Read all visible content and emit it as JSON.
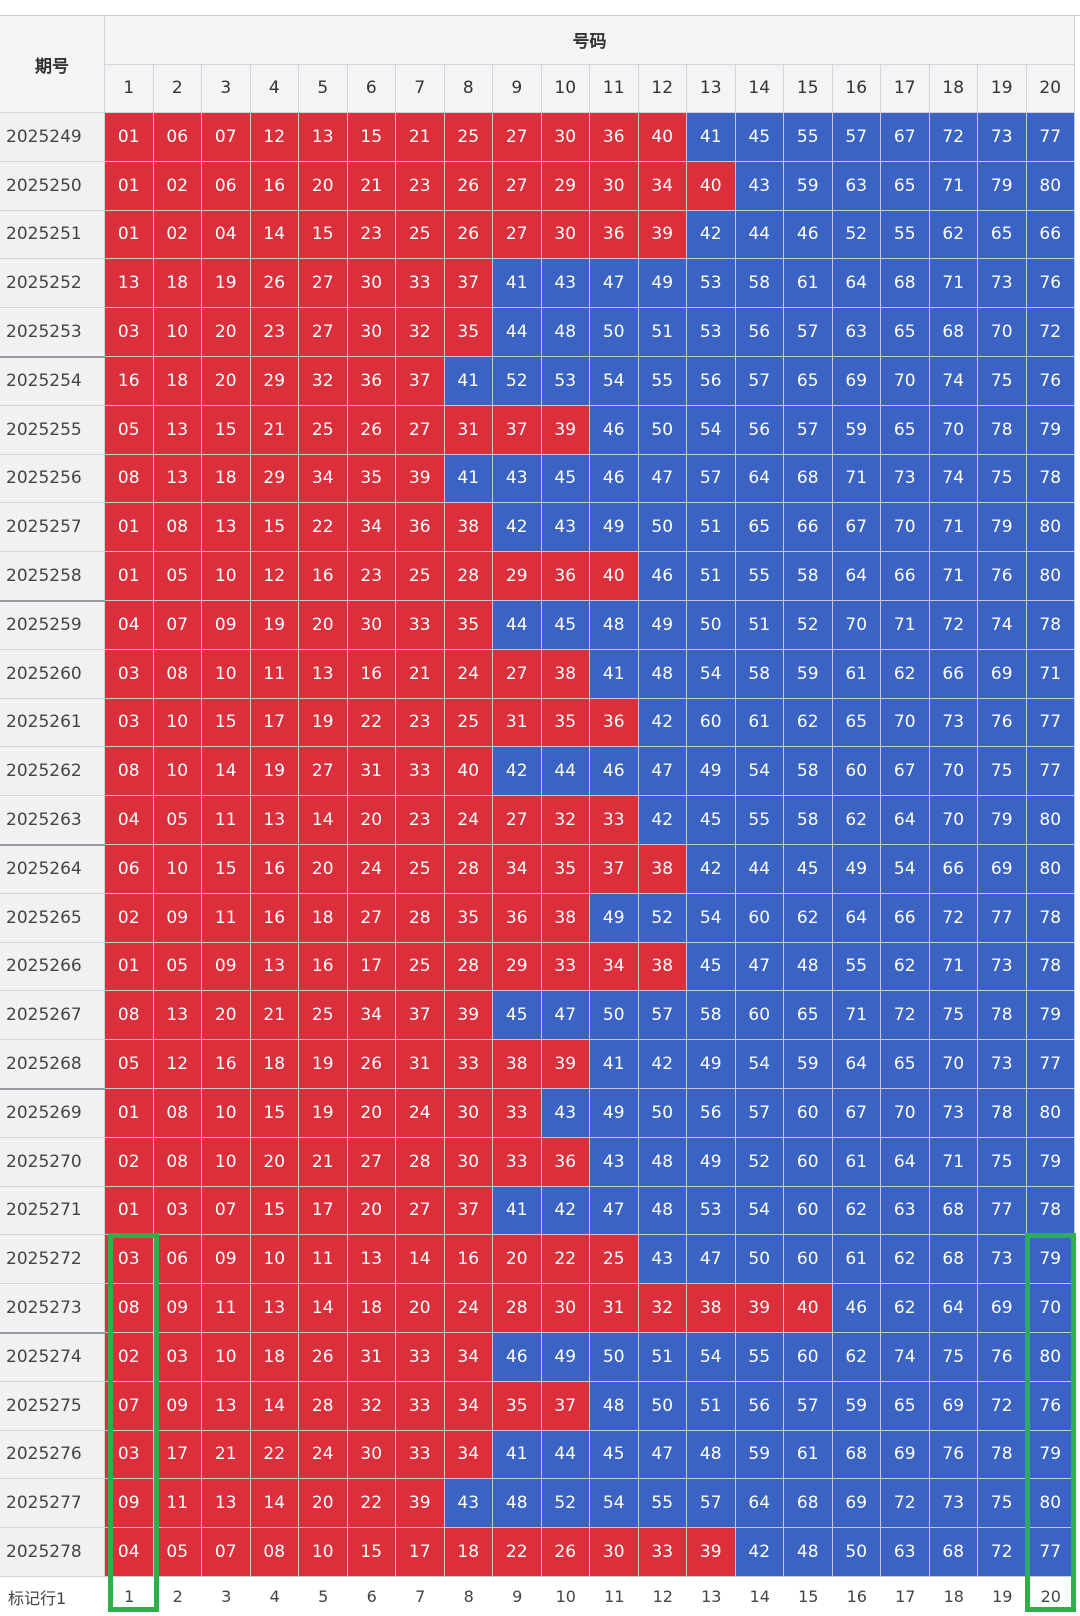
{
  "header": {
    "period_label": "期号",
    "numbers_label": "号码",
    "columns": [
      "1",
      "2",
      "3",
      "4",
      "5",
      "6",
      "7",
      "8",
      "9",
      "10",
      "11",
      "12",
      "13",
      "14",
      "15",
      "16",
      "17",
      "18",
      "19",
      "20"
    ]
  },
  "colors": {
    "low": "#dc2f3c",
    "high": "#3b63c3"
  },
  "rows": [
    {
      "period": "2025249",
      "red_cells": 12,
      "numbers": [
        "01",
        "06",
        "07",
        "12",
        "13",
        "15",
        "21",
        "25",
        "27",
        "30",
        "36",
        "40",
        "41",
        "45",
        "55",
        "57",
        "67",
        "72",
        "73",
        "77"
      ]
    },
    {
      "period": "2025250",
      "red_cells": 13,
      "numbers": [
        "01",
        "02",
        "06",
        "16",
        "20",
        "21",
        "23",
        "26",
        "27",
        "29",
        "30",
        "34",
        "40",
        "43",
        "59",
        "63",
        "65",
        "71",
        "79",
        "80"
      ]
    },
    {
      "period": "2025251",
      "red_cells": 12,
      "numbers": [
        "01",
        "02",
        "04",
        "14",
        "15",
        "23",
        "25",
        "26",
        "27",
        "30",
        "36",
        "39",
        "42",
        "44",
        "46",
        "52",
        "55",
        "62",
        "65",
        "66"
      ]
    },
    {
      "period": "2025252",
      "red_cells": 8,
      "numbers": [
        "13",
        "18",
        "19",
        "26",
        "27",
        "30",
        "33",
        "37",
        "41",
        "43",
        "47",
        "49",
        "53",
        "58",
        "61",
        "64",
        "68",
        "71",
        "73",
        "76"
      ]
    },
    {
      "period": "2025253",
      "red_cells": 8,
      "numbers": [
        "03",
        "10",
        "20",
        "23",
        "27",
        "30",
        "32",
        "35",
        "44",
        "48",
        "50",
        "51",
        "53",
        "56",
        "57",
        "63",
        "65",
        "68",
        "70",
        "72"
      ]
    },
    {
      "period": "2025254",
      "red_cells": 7,
      "numbers": [
        "16",
        "18",
        "20",
        "29",
        "32",
        "36",
        "37",
        "41",
        "52",
        "53",
        "54",
        "55",
        "56",
        "57",
        "65",
        "69",
        "70",
        "74",
        "75",
        "76"
      ]
    },
    {
      "period": "2025255",
      "red_cells": 10,
      "numbers": [
        "05",
        "13",
        "15",
        "21",
        "25",
        "26",
        "27",
        "31",
        "37",
        "39",
        "46",
        "50",
        "54",
        "56",
        "57",
        "59",
        "65",
        "70",
        "78",
        "79"
      ]
    },
    {
      "period": "2025256",
      "red_cells": 7,
      "numbers": [
        "08",
        "13",
        "18",
        "29",
        "34",
        "35",
        "39",
        "41",
        "43",
        "45",
        "46",
        "47",
        "57",
        "64",
        "68",
        "71",
        "73",
        "74",
        "75",
        "78"
      ]
    },
    {
      "period": "2025257",
      "red_cells": 8,
      "numbers": [
        "01",
        "08",
        "13",
        "15",
        "22",
        "34",
        "36",
        "38",
        "42",
        "43",
        "49",
        "50",
        "51",
        "65",
        "66",
        "67",
        "70",
        "71",
        "79",
        "80"
      ]
    },
    {
      "period": "2025258",
      "red_cells": 11,
      "numbers": [
        "01",
        "05",
        "10",
        "12",
        "16",
        "23",
        "25",
        "28",
        "29",
        "36",
        "40",
        "46",
        "51",
        "55",
        "58",
        "64",
        "66",
        "71",
        "76",
        "80"
      ]
    },
    {
      "period": "2025259",
      "red_cells": 8,
      "numbers": [
        "04",
        "07",
        "09",
        "19",
        "20",
        "30",
        "33",
        "35",
        "44",
        "45",
        "48",
        "49",
        "50",
        "51",
        "52",
        "70",
        "71",
        "72",
        "74",
        "78"
      ]
    },
    {
      "period": "2025260",
      "red_cells": 10,
      "numbers": [
        "03",
        "08",
        "10",
        "11",
        "13",
        "16",
        "21",
        "24",
        "27",
        "38",
        "41",
        "48",
        "54",
        "58",
        "59",
        "61",
        "62",
        "66",
        "69",
        "71"
      ]
    },
    {
      "period": "2025261",
      "red_cells": 11,
      "numbers": [
        "03",
        "10",
        "15",
        "17",
        "19",
        "22",
        "23",
        "25",
        "31",
        "35",
        "36",
        "42",
        "60",
        "61",
        "62",
        "65",
        "70",
        "73",
        "76",
        "77"
      ]
    },
    {
      "period": "2025262",
      "red_cells": 8,
      "numbers": [
        "08",
        "10",
        "14",
        "19",
        "27",
        "31",
        "33",
        "40",
        "42",
        "44",
        "46",
        "47",
        "49",
        "54",
        "58",
        "60",
        "67",
        "70",
        "75",
        "77"
      ]
    },
    {
      "period": "2025263",
      "red_cells": 11,
      "numbers": [
        "04",
        "05",
        "11",
        "13",
        "14",
        "20",
        "23",
        "24",
        "27",
        "32",
        "33",
        "42",
        "45",
        "55",
        "58",
        "62",
        "64",
        "70",
        "79",
        "80"
      ]
    },
    {
      "period": "2025264",
      "red_cells": 12,
      "numbers": [
        "06",
        "10",
        "15",
        "16",
        "20",
        "24",
        "25",
        "28",
        "34",
        "35",
        "37",
        "38",
        "42",
        "44",
        "45",
        "49",
        "54",
        "66",
        "69",
        "80"
      ]
    },
    {
      "period": "2025265",
      "red_cells": 10,
      "numbers": [
        "02",
        "09",
        "11",
        "16",
        "18",
        "27",
        "28",
        "35",
        "36",
        "38",
        "49",
        "52",
        "54",
        "60",
        "62",
        "64",
        "66",
        "72",
        "77",
        "78"
      ]
    },
    {
      "period": "2025266",
      "red_cells": 12,
      "numbers": [
        "01",
        "05",
        "09",
        "13",
        "16",
        "17",
        "25",
        "28",
        "29",
        "33",
        "34",
        "38",
        "45",
        "47",
        "48",
        "55",
        "62",
        "71",
        "73",
        "78"
      ]
    },
    {
      "period": "2025267",
      "red_cells": 8,
      "numbers": [
        "08",
        "13",
        "20",
        "21",
        "25",
        "34",
        "37",
        "39",
        "45",
        "47",
        "50",
        "57",
        "58",
        "60",
        "65",
        "71",
        "72",
        "75",
        "78",
        "79"
      ]
    },
    {
      "period": "2025268",
      "red_cells": 10,
      "numbers": [
        "05",
        "12",
        "16",
        "18",
        "19",
        "26",
        "31",
        "33",
        "38",
        "39",
        "41",
        "42",
        "49",
        "54",
        "59",
        "64",
        "65",
        "70",
        "73",
        "77"
      ]
    },
    {
      "period": "2025269",
      "red_cells": 9,
      "numbers": [
        "01",
        "08",
        "10",
        "15",
        "19",
        "20",
        "24",
        "30",
        "33",
        "43",
        "49",
        "50",
        "56",
        "57",
        "60",
        "67",
        "70",
        "73",
        "78",
        "80"
      ]
    },
    {
      "period": "2025270",
      "red_cells": 10,
      "numbers": [
        "02",
        "08",
        "10",
        "20",
        "21",
        "27",
        "28",
        "30",
        "33",
        "36",
        "43",
        "48",
        "49",
        "52",
        "60",
        "61",
        "64",
        "71",
        "75",
        "79"
      ]
    },
    {
      "period": "2025271",
      "red_cells": 8,
      "numbers": [
        "01",
        "03",
        "07",
        "15",
        "17",
        "20",
        "27",
        "37",
        "41",
        "42",
        "47",
        "48",
        "53",
        "54",
        "60",
        "62",
        "63",
        "68",
        "77",
        "78"
      ]
    },
    {
      "period": "2025272",
      "red_cells": 11,
      "numbers": [
        "03",
        "06",
        "09",
        "10",
        "11",
        "13",
        "14",
        "16",
        "20",
        "22",
        "25",
        "43",
        "47",
        "50",
        "60",
        "61",
        "62",
        "68",
        "73",
        "79"
      ]
    },
    {
      "period": "2025273",
      "red_cells": 15,
      "numbers": [
        "08",
        "09",
        "11",
        "13",
        "14",
        "18",
        "20",
        "24",
        "28",
        "30",
        "31",
        "32",
        "38",
        "39",
        "40",
        "46",
        "62",
        "64",
        "69",
        "70"
      ]
    },
    {
      "period": "2025274",
      "red_cells": 8,
      "numbers": [
        "02",
        "03",
        "10",
        "18",
        "26",
        "31",
        "33",
        "34",
        "46",
        "49",
        "50",
        "51",
        "54",
        "55",
        "60",
        "62",
        "74",
        "75",
        "76",
        "80"
      ]
    },
    {
      "period": "2025275",
      "red_cells": 10,
      "numbers": [
        "07",
        "09",
        "13",
        "14",
        "28",
        "32",
        "33",
        "34",
        "35",
        "37",
        "48",
        "50",
        "51",
        "56",
        "57",
        "59",
        "65",
        "69",
        "72",
        "76"
      ]
    },
    {
      "period": "2025276",
      "red_cells": 8,
      "numbers": [
        "03",
        "17",
        "21",
        "22",
        "24",
        "30",
        "33",
        "34",
        "41",
        "44",
        "45",
        "47",
        "48",
        "59",
        "61",
        "68",
        "69",
        "76",
        "78",
        "79"
      ]
    },
    {
      "period": "2025277",
      "red_cells": 7,
      "numbers": [
        "09",
        "11",
        "13",
        "14",
        "20",
        "22",
        "39",
        "43",
        "48",
        "52",
        "54",
        "55",
        "57",
        "64",
        "68",
        "69",
        "72",
        "73",
        "75",
        "80"
      ]
    },
    {
      "period": "2025278",
      "red_cells": 13,
      "numbers": [
        "04",
        "05",
        "07",
        "08",
        "10",
        "15",
        "17",
        "18",
        "22",
        "26",
        "30",
        "33",
        "39",
        "42",
        "48",
        "50",
        "63",
        "68",
        "72",
        "77"
      ]
    }
  ],
  "footer": {
    "label": "标记行1",
    "columns": [
      "1",
      "2",
      "3",
      "4",
      "5",
      "6",
      "7",
      "8",
      "9",
      "10",
      "11",
      "12",
      "13",
      "14",
      "15",
      "16",
      "17",
      "18",
      "19",
      "20"
    ]
  }
}
